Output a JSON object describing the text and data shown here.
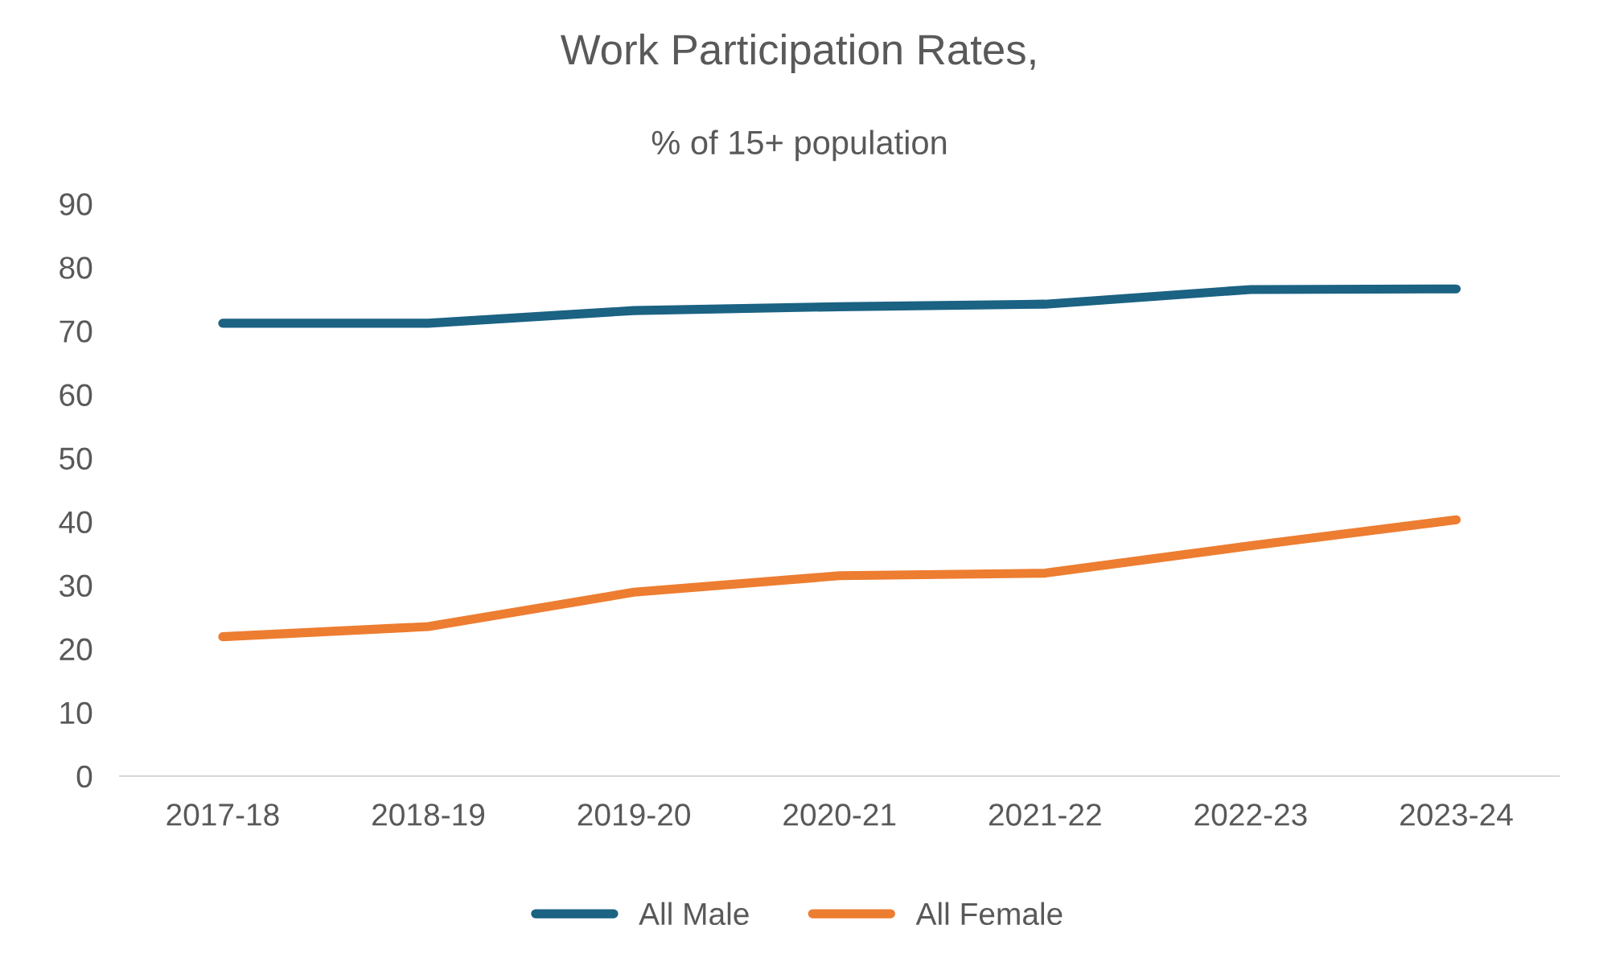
{
  "chart_data": {
    "type": "line",
    "title": "Work Participation Rates,",
    "subtitle": "% of 15+ population",
    "categories": [
      "2017-18",
      "2018-19",
      "2019-20",
      "2020-21",
      "2021-22",
      "2022-23",
      "2023-24"
    ],
    "series": [
      {
        "name": "All Male",
        "color": "#1b6283",
        "values": [
          71.2,
          71.2,
          73.2,
          73.8,
          74.2,
          76.5,
          76.6
        ]
      },
      {
        "name": "All Female",
        "color": "#ed7d31",
        "values": [
          21.9,
          23.5,
          28.9,
          31.5,
          31.9,
          36.2,
          40.3
        ]
      }
    ],
    "ylim": [
      0,
      90
    ],
    "yticks": [
      0,
      10,
      20,
      30,
      40,
      50,
      60,
      70,
      80,
      90
    ],
    "grid": false,
    "legend": "bottom",
    "marker": "none",
    "line_style": "solid"
  }
}
